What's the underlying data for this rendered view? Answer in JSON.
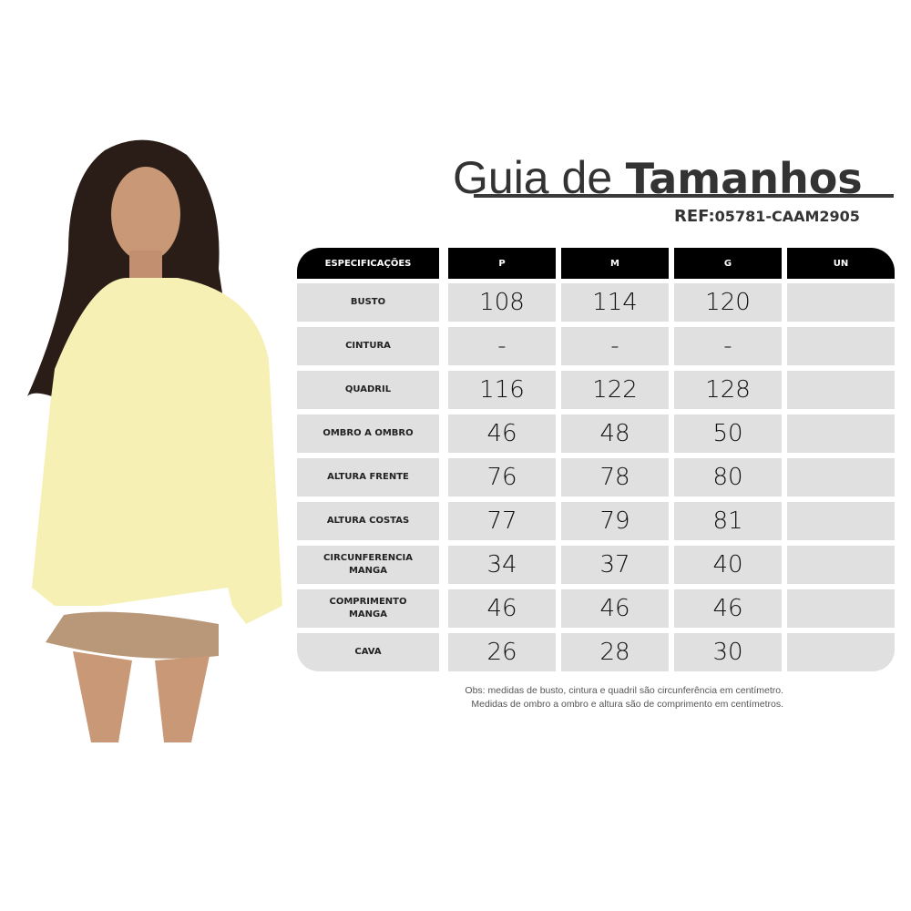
{
  "title": {
    "light": "Guia de",
    "bold": "Tamanhos"
  },
  "ref": {
    "label": "REF:",
    "code": "05781-CAAM2905"
  },
  "table": {
    "headers": [
      "ESPECIFICAÇÕES",
      "P",
      "M",
      "G",
      "UN"
    ],
    "rows": [
      {
        "label": "BUSTO",
        "values": [
          "108",
          "114",
          "120",
          ""
        ]
      },
      {
        "label": "CINTURA",
        "values": [
          "-",
          "-",
          "-",
          ""
        ]
      },
      {
        "label": "QUADRIL",
        "values": [
          "116",
          "122",
          "128",
          ""
        ]
      },
      {
        "label": "OMBRO A OMBRO",
        "values": [
          "46",
          "48",
          "50",
          ""
        ]
      },
      {
        "label": "ALTURA FRENTE",
        "values": [
          "76",
          "78",
          "80",
          ""
        ]
      },
      {
        "label": "ALTURA COSTAS",
        "values": [
          "77",
          "79",
          "81",
          ""
        ]
      },
      {
        "label": "CIRCUNFERENCIA MANGA",
        "values": [
          "34",
          "37",
          "40",
          ""
        ]
      },
      {
        "label": "COMPRIMENTO MANGA",
        "values": [
          "46",
          "46",
          "46",
          ""
        ]
      },
      {
        "label": "CAVA",
        "values": [
          "26",
          "28",
          "30",
          ""
        ]
      }
    ]
  },
  "notes": [
    "Obs: medidas de busto, cintura e quadril são circunferência em centímetro.",
    "Medidas de ombro a ombro e altura são de comprimento em centímetros."
  ],
  "colors": {
    "header_bg": "#000000",
    "cell_bg": "#e0e0e0",
    "shirt": "#f6f0b4"
  }
}
